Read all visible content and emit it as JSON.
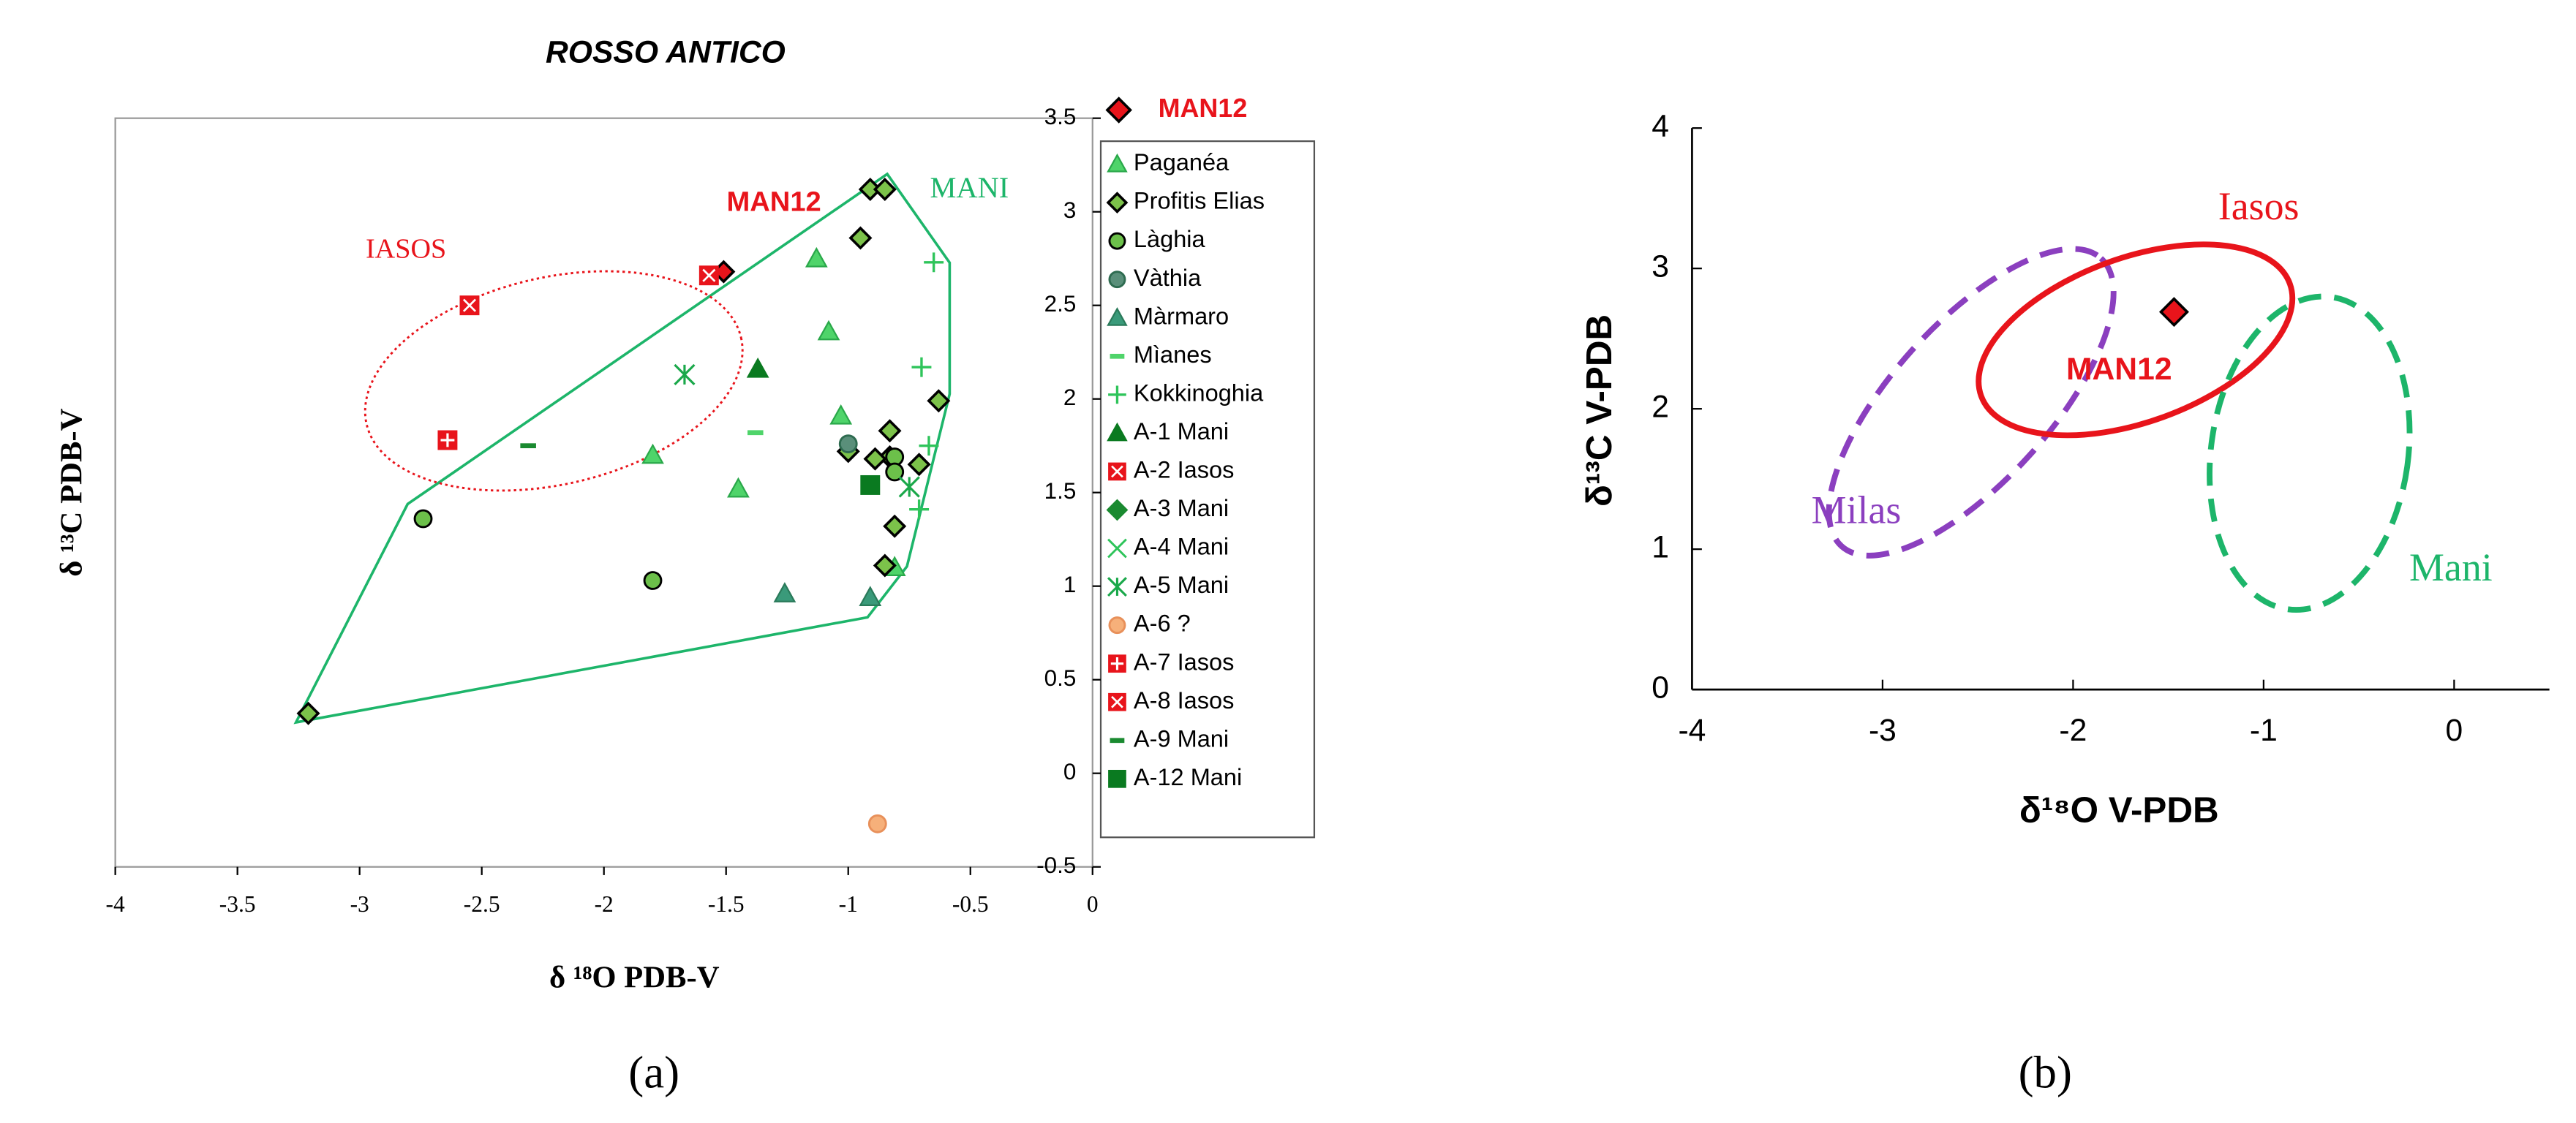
{
  "chart_data": [
    {
      "type": "scatter",
      "title": "ROSSO ANTICO",
      "x_label": "δ ¹⁸O PDB-V",
      "y_label": "δ ¹³C PDB-V",
      "panel_label": "(a)",
      "xlim": [
        -4,
        0
      ],
      "ylim": [
        -0.5,
        3.5
      ],
      "xticks": [
        -4,
        -3.5,
        -3,
        -2.5,
        -2,
        -1.5,
        -1,
        -0.5,
        0
      ],
      "yticks": [
        -0.5,
        0,
        0.5,
        1,
        1.5,
        2,
        2.5,
        3,
        3.5
      ],
      "annotations": [
        "IASOS",
        "MAN12",
        "MANI"
      ],
      "series": [
        {
          "name": "MAN12",
          "color": "#e8141b",
          "edgecolor": "#000",
          "marker": "diamond",
          "x": [
            -1.51
          ],
          "y": [
            2.68
          ]
        },
        {
          "name": "Paganéa",
          "color": "#4fd46a",
          "edgecolor": "#2aa84a",
          "marker": "triangle",
          "x": [
            -1.13,
            -1.08,
            -1.03,
            -1.8,
            -1.45,
            -0.81
          ],
          "y": [
            2.75,
            2.36,
            1.91,
            1.7,
            1.52,
            1.1
          ]
        },
        {
          "name": "Profitis Elias",
          "color": "#7cc24a",
          "edgecolor": "#000",
          "marker": "diamond",
          "x": [
            -0.91,
            -0.85,
            -0.95,
            -0.63,
            -0.83,
            -0.83,
            -0.89,
            -1.0,
            -0.71,
            -0.81,
            -0.85,
            -3.21
          ],
          "y": [
            3.12,
            3.12,
            2.86,
            1.99,
            1.83,
            1.69,
            1.68,
            1.72,
            1.65,
            1.32,
            1.11,
            0.32
          ]
        },
        {
          "name": "Làghia",
          "color": "#6cc04a",
          "edgecolor": "#000",
          "marker": "circle",
          "x": [
            -2.74,
            -1.8,
            -0.81,
            -0.81
          ],
          "y": [
            1.36,
            1.03,
            1.69,
            1.61
          ]
        },
        {
          "name": "Vàthia",
          "color": "#5a8f7a",
          "edgecolor": "#2e6b50",
          "marker": "circle",
          "x": [
            -1.0
          ],
          "y": [
            1.76
          ]
        },
        {
          "name": "Màrmaro",
          "color": "#3a9a7a",
          "edgecolor": "#2a7a5a",
          "marker": "triangle",
          "x": [
            -1.26,
            -0.91
          ],
          "y": [
            0.96,
            0.94
          ]
        },
        {
          "name": "Mìanes",
          "color": "#4fd46a",
          "marker": "dash",
          "x": [
            -1.38
          ],
          "y": [
            1.82
          ]
        },
        {
          "name": "Kokkinoghia",
          "color": "#2ec45a",
          "marker": "plus",
          "x": [
            -0.65,
            -0.7,
            -0.67,
            -0.71
          ],
          "y": [
            2.73,
            2.17,
            1.75,
            1.41
          ]
        },
        {
          "name": "A-1 Mani",
          "color": "#0a7a20",
          "marker": "triangle",
          "x": [
            -1.37
          ],
          "y": [
            2.16
          ]
        },
        {
          "name": "A-2 Iasos",
          "color": "#e8141b",
          "marker": "square-x",
          "x": [
            -1.57
          ],
          "y": [
            2.66
          ]
        },
        {
          "name": "A-3 Mani",
          "color": "#1a8a30",
          "marker": "diamond",
          "x": [],
          "y": []
        },
        {
          "name": "A-4 Mani",
          "color": "#2ec45a",
          "marker": "x",
          "x": [],
          "y": []
        },
        {
          "name": "A-5 Mani",
          "color": "#1aa84a",
          "marker": "asterisk",
          "x": [
            -1.67,
            -0.75
          ],
          "y": [
            2.13,
            1.53
          ]
        },
        {
          "name": "A-6 ?",
          "color": "#f6b07a",
          "edgecolor": "#e8905a",
          "marker": "circle",
          "x": [
            -0.88
          ],
          "y": [
            -0.27
          ]
        },
        {
          "name": "A-7 Iasos",
          "color": "#e8141b",
          "marker": "square-plus",
          "x": [
            -2.64
          ],
          "y": [
            1.78
          ]
        },
        {
          "name": "A-8 Iasos",
          "color": "#e8141b",
          "marker": "square-x",
          "x": [
            -2.55
          ],
          "y": [
            2.5
          ]
        },
        {
          "name": "A-9 Mani",
          "color": "#1a8a30",
          "marker": "dash",
          "x": [
            -2.31
          ],
          "y": [
            1.75
          ]
        },
        {
          "name": "A-12 Mani",
          "color": "#0a7a20",
          "marker": "square",
          "x": [
            -0.91
          ],
          "y": [
            1.54
          ]
        }
      ]
    },
    {
      "type": "scatter",
      "x_label": "δ¹⁸O V-PDB",
      "y_label": "δ¹³C V-PDB",
      "panel_label": "(b)",
      "xlim": [
        -4,
        0.5
      ],
      "ylim": [
        0,
        4
      ],
      "xticks": [
        -4,
        -3,
        -2,
        -1,
        0
      ],
      "yticks": [
        0,
        1,
        2,
        3,
        4
      ],
      "annotations": [
        "Iasos",
        "MAN12",
        "Milas",
        "Mani"
      ],
      "series": [
        {
          "name": "MAN12",
          "color": "#e8141b",
          "edgecolor": "#000",
          "marker": "diamond",
          "x": [
            -1.47
          ],
          "y": [
            2.69
          ]
        }
      ]
    }
  ]
}
